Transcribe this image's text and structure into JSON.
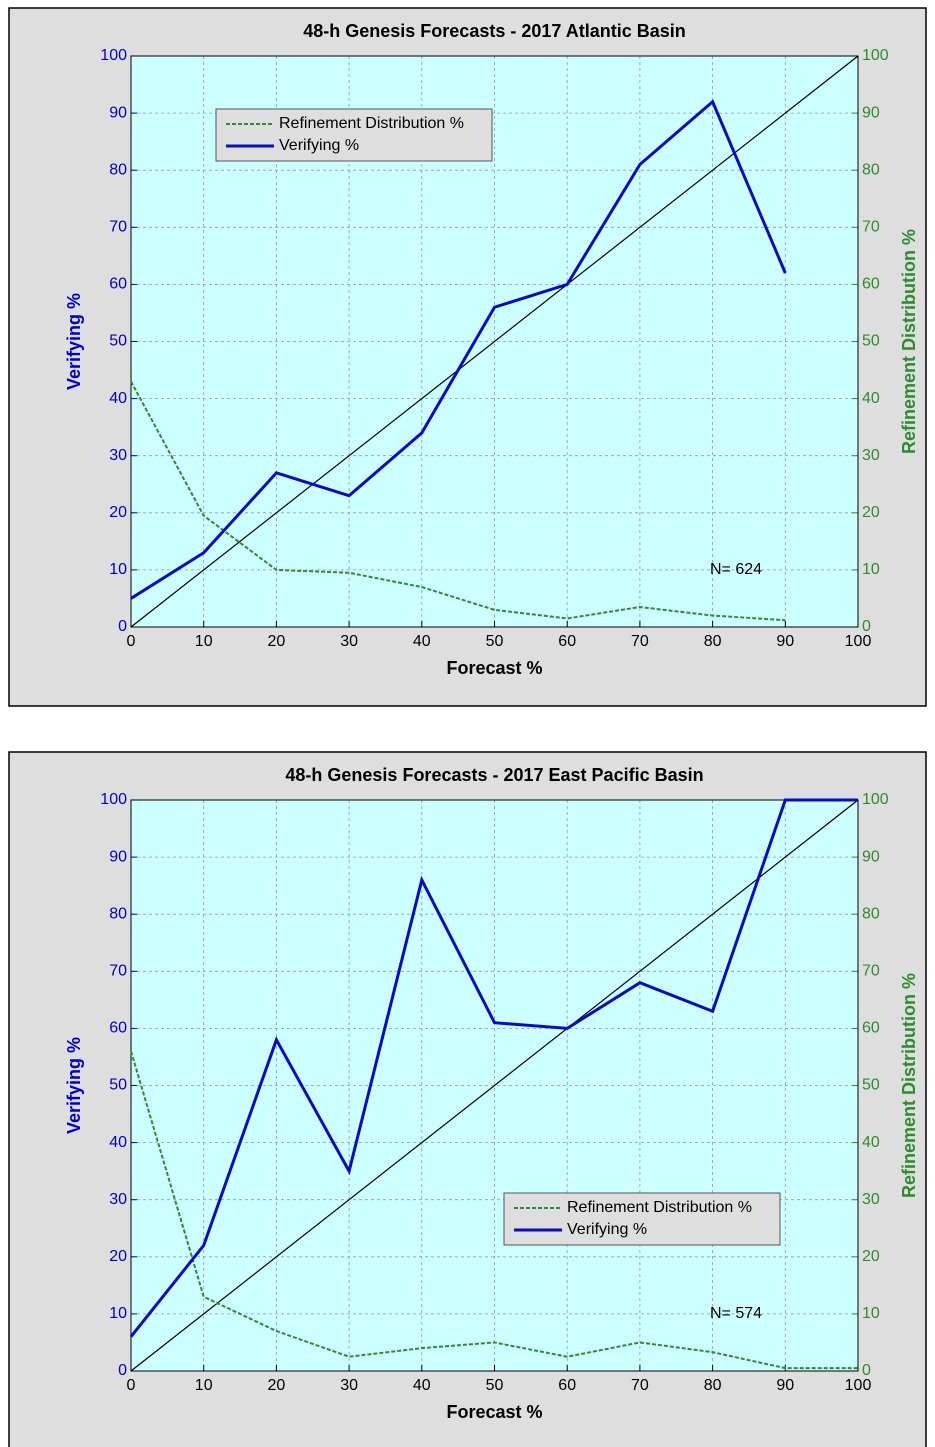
{
  "chart_data": [
    {
      "type": "line",
      "title": "48-h Genesis Forecasts  - 2017 Atlantic Basin",
      "xlabel": "Forecast %",
      "ylabel": "Verifying %",
      "y2label": "Refinement Distribution %",
      "x": [
        0,
        10,
        20,
        30,
        40,
        50,
        60,
        70,
        80,
        90
      ],
      "series": [
        {
          "name": "Refinement Distribution %",
          "color": "#2e8b2e",
          "linestyle": "dashed",
          "axis": "y2",
          "values": [
            43,
            19.5,
            10,
            9.5,
            7,
            3,
            1.5,
            3.5,
            2,
            1.2
          ]
        },
        {
          "name": "Verifying %",
          "color": "#0a0ac8",
          "linestyle": "solid",
          "values": [
            5,
            13,
            27,
            23,
            34,
            56,
            60,
            81,
            92,
            62
          ]
        }
      ],
      "annotation": "N= 624",
      "xlim": [
        0,
        100
      ],
      "ylim": [
        0,
        100
      ],
      "y2lim": [
        0,
        100
      ],
      "xticks": [
        0,
        10,
        20,
        30,
        40,
        50,
        60,
        70,
        80,
        90,
        100
      ],
      "yticks": [
        0,
        10,
        20,
        30,
        40,
        50,
        60,
        70,
        80,
        90,
        100
      ],
      "y2ticks": [
        0,
        10,
        20,
        30,
        40,
        50,
        60,
        70,
        80,
        90,
        100
      ],
      "grid": true,
      "legend": "upper left"
    },
    {
      "type": "line",
      "title": "48-h Genesis Forecasts  - 2017 East Pacific Basin",
      "xlabel": "Forecast %",
      "ylabel": "Verifying %",
      "y2label": "Refinement Distribution %",
      "x": [
        0,
        10,
        20,
        30,
        40,
        50,
        60,
        70,
        80,
        90,
        100
      ],
      "series": [
        {
          "name": "Refinement Distribution %",
          "color": "#2e8b2e",
          "linestyle": "dashed",
          "axis": "y2",
          "values": [
            56,
            13,
            7,
            2.5,
            4,
            5,
            2.5,
            5,
            3.3,
            0.5,
            0.5
          ]
        },
        {
          "name": "Verifying %",
          "color": "#0a0ac8",
          "linestyle": "solid",
          "values": [
            6,
            22,
            58,
            35,
            86,
            61,
            60,
            68,
            63,
            100,
            100
          ]
        }
      ],
      "annotation": "N= 574",
      "xlim": [
        0,
        100
      ],
      "ylim": [
        0,
        100
      ],
      "y2lim": [
        0,
        100
      ],
      "xticks": [
        0,
        10,
        20,
        30,
        40,
        50,
        60,
        70,
        80,
        90,
        100
      ],
      "yticks": [
        0,
        10,
        20,
        30,
        40,
        50,
        60,
        70,
        80,
        90,
        100
      ],
      "y2ticks": [
        0,
        10,
        20,
        30,
        40,
        50,
        60,
        70,
        80,
        90,
        100
      ],
      "grid": true,
      "legend": "center right"
    }
  ]
}
